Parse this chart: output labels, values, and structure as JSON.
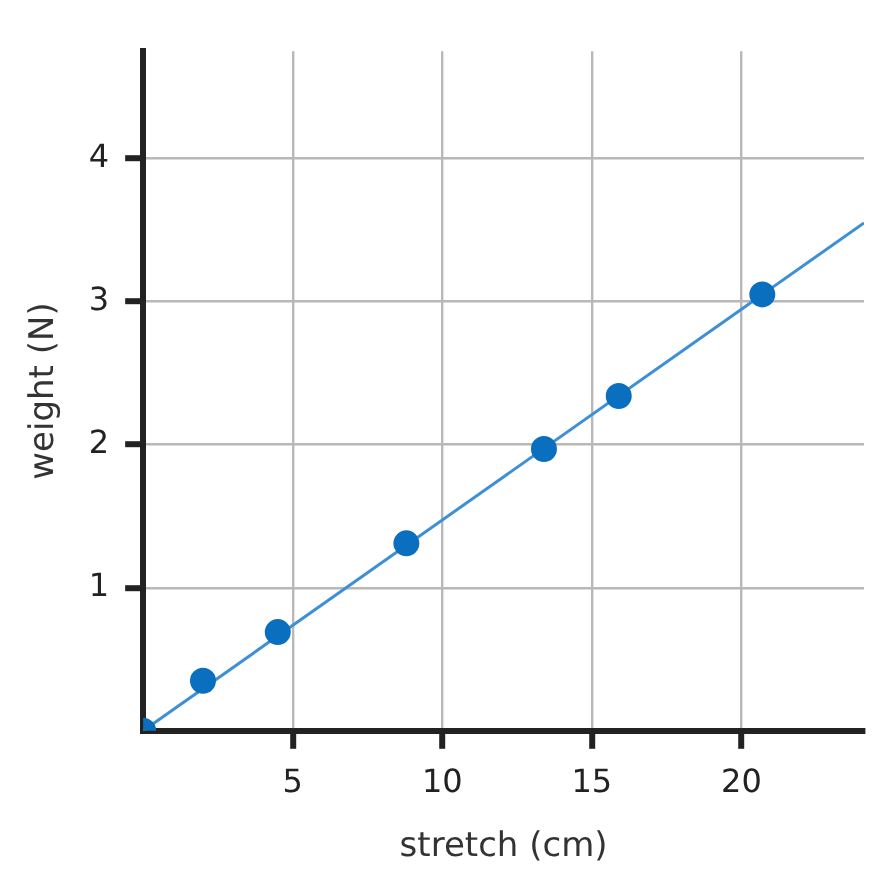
{
  "chart_data": {
    "type": "scatter",
    "xlabel": "stretch (cm)",
    "ylabel": "weight (N)",
    "xlim": [
      0,
      24.1
    ],
    "ylim": [
      0,
      4.75
    ],
    "xticks": [
      5,
      10,
      15,
      20
    ],
    "yticks": [
      1,
      2,
      3,
      4
    ],
    "grid": true,
    "marker": "circle",
    "series": [
      {
        "color": "#0b6fbf",
        "x": [
          0,
          2.0,
          4.5,
          8.8,
          13.4,
          15.9,
          20.7
        ],
        "values": [
          0,
          0.35,
          0.69,
          1.31,
          1.97,
          2.34,
          3.05
        ]
      },
      {
        "type": "line",
        "marker": "none",
        "color": "#3d8fd6",
        "x": [
          0,
          24.1
        ],
        "values": [
          0,
          3.55
        ]
      }
    ]
  }
}
